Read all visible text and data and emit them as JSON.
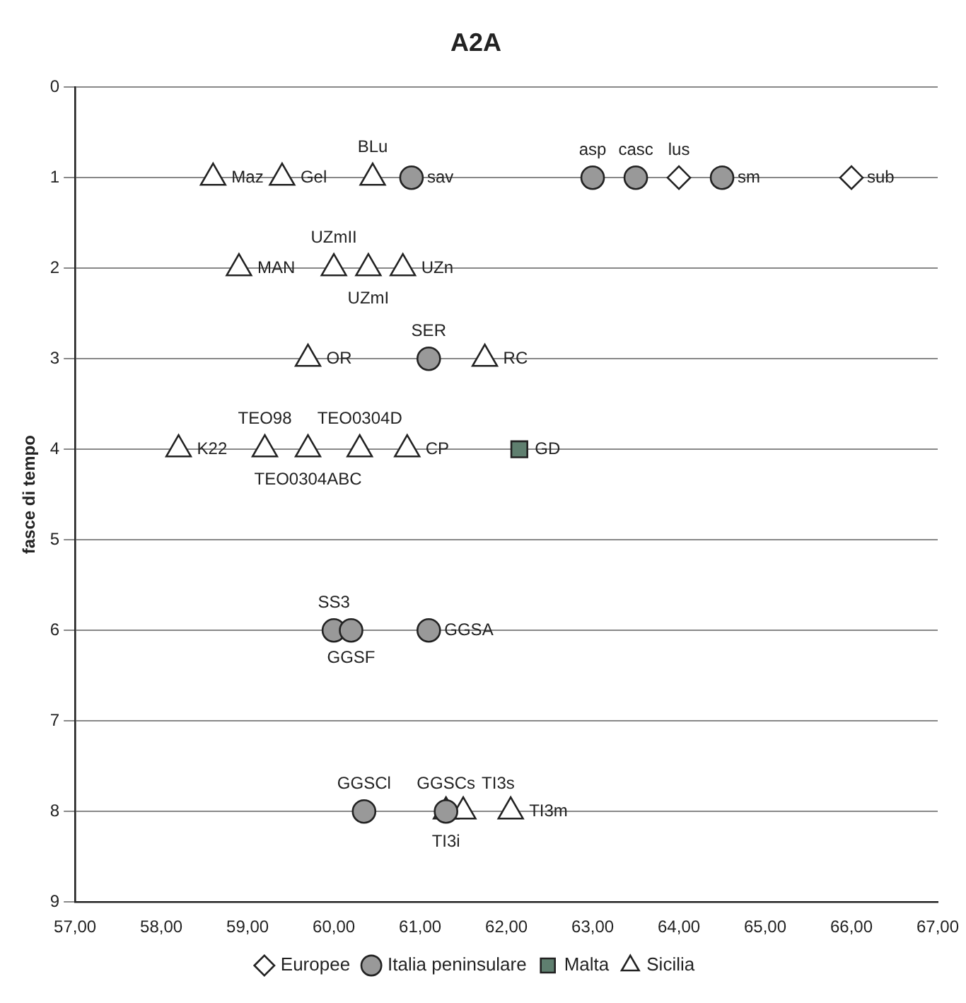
{
  "chart_data": {
    "type": "scatter",
    "title": "A2A",
    "ylabel": "fasce di tempo",
    "xlim": [
      57,
      67
    ],
    "xticks": [
      {
        "value": 57,
        "label": "57,00"
      },
      {
        "value": 58,
        "label": "58,00"
      },
      {
        "value": 59,
        "label": "59,00"
      },
      {
        "value": 60,
        "label": "60,00"
      },
      {
        "value": 61,
        "label": "61,00"
      },
      {
        "value": 62,
        "label": "62,00"
      },
      {
        "value": 63,
        "label": "63,00"
      },
      {
        "value": 64,
        "label": "64,00"
      },
      {
        "value": 65,
        "label": "65,00"
      },
      {
        "value": 66,
        "label": "66,00"
      },
      {
        "value": 67,
        "label": "67,00"
      }
    ],
    "ylim": [
      9,
      0
    ],
    "yticks": [
      0,
      1,
      2,
      3,
      4,
      5,
      6,
      7,
      8,
      9
    ],
    "grid": "y",
    "legend": "bottom",
    "series": [
      {
        "name": "Europee",
        "color": "#ffffff",
        "marker": "diamond",
        "x": [
          64.0,
          66.0
        ],
        "values": [
          1,
          1
        ],
        "value_labels": [
          "lus",
          "sub"
        ]
      },
      {
        "name": "Italia peninsulare",
        "color": "#999999",
        "marker": "circle",
        "x": [
          60.9,
          63.0,
          63.5,
          64.5,
          61.1,
          60.0,
          60.2,
          61.1,
          60.35,
          61.3
        ],
        "values": [
          1,
          1,
          1,
          1,
          3,
          6,
          6,
          6,
          8,
          8
        ],
        "value_labels": [
          "sav",
          "asp",
          "casc",
          "sm",
          "SER",
          "SS3",
          "GGSF",
          "GGSA",
          "GGSCl",
          "GGSCs"
        ]
      },
      {
        "name": "Malta",
        "color": "#5f7f6f",
        "marker": "square",
        "x": [
          62.15
        ],
        "values": [
          4
        ],
        "value_labels": [
          "GD"
        ]
      },
      {
        "name": "Sicilia",
        "color": "#ffffff",
        "marker": "triangle",
        "x": [
          58.6,
          59.4,
          60.45,
          58.9,
          60.0,
          60.4,
          60.8,
          59.7,
          61.75,
          58.2,
          59.2,
          59.7,
          60.3,
          60.85,
          61.3,
          61.5,
          62.05
        ],
        "values": [
          1,
          1,
          1,
          2,
          2,
          2,
          2,
          3,
          3,
          4,
          4,
          4,
          4,
          4,
          8,
          8,
          8
        ],
        "value_labels": [
          "Maz",
          "Gel",
          "BLu",
          "MAN",
          "UZmII",
          "UZmI",
          "UZn",
          "OR",
          "RC",
          "K22",
          "TEO98",
          "TEO0304ABC",
          "TEO0304D",
          "CP",
          "TI3i",
          "TI3s",
          "TI3m"
        ]
      }
    ]
  }
}
